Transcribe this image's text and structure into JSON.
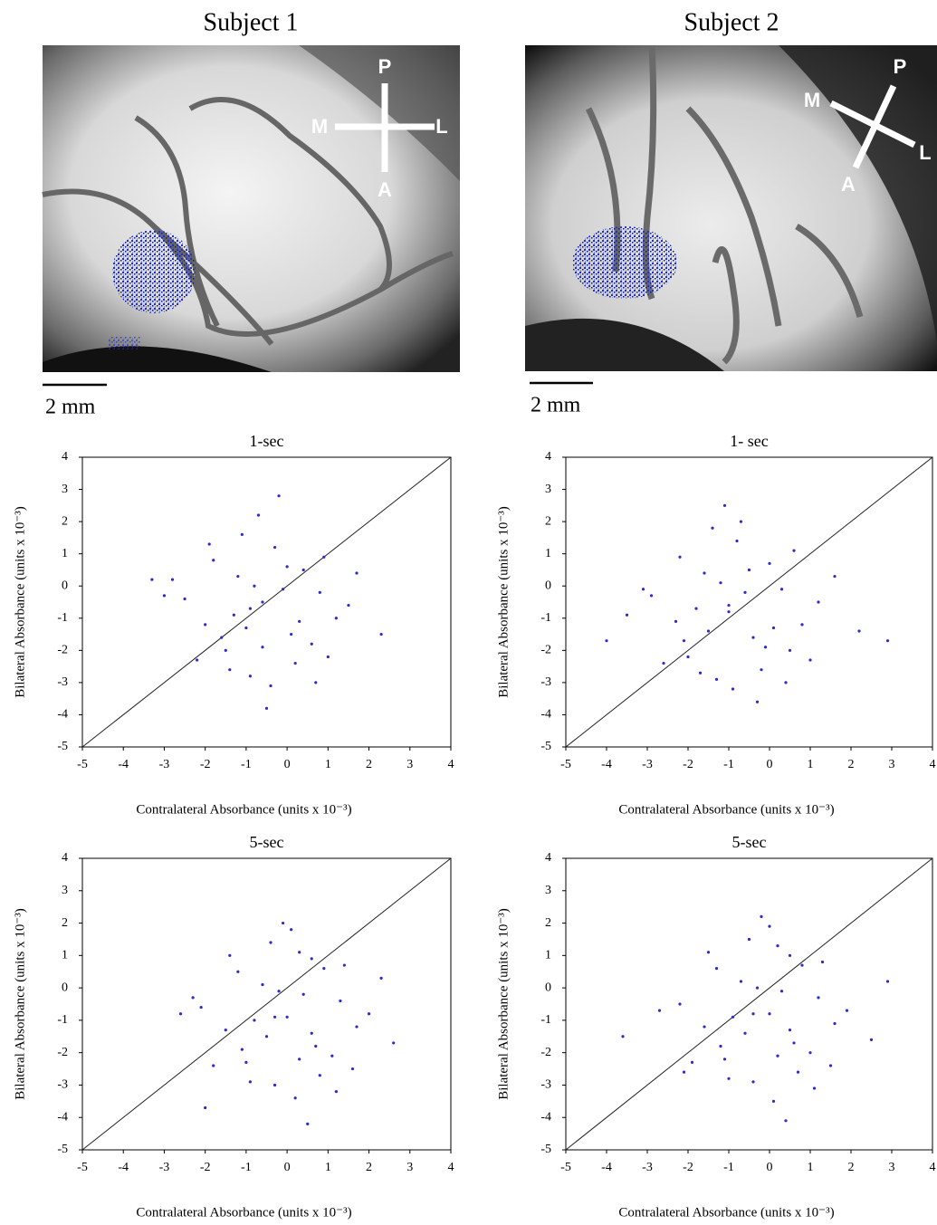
{
  "images": [
    {
      "title": "Subject 1",
      "orientation_labels": [
        "P",
        "M",
        "L",
        "A"
      ],
      "scale_bar": "2 mm"
    },
    {
      "title": "Subject 2",
      "orientation_labels": [
        "P",
        "M",
        "L",
        "A"
      ],
      "scale_bar": "2 mm"
    }
  ],
  "chart_data": [
    {
      "type": "scatter",
      "title": "1-sec",
      "x_label": "Contralateral Absorbance (units x 10⁻³)",
      "y_label": "Bilateral Absorbance (units x 10⁻³)",
      "color": "#2b2bd0",
      "xlim": [
        -5,
        4
      ],
      "ylim": [
        -5,
        4
      ],
      "xticks": [
        -5,
        -4,
        -3,
        -2,
        -1,
        0,
        1,
        2,
        3,
        4
      ],
      "yticks": [
        -5,
        -4,
        -3,
        -2,
        -1,
        0,
        1,
        2,
        3,
        4
      ],
      "x": [
        -0.6,
        -1.2,
        0.1,
        -2.0,
        0.8,
        -0.3,
        -1.5,
        0.4,
        -0.9,
        -2.5,
        1.2,
        -0.1,
        -1.8,
        0.6,
        -0.7,
        -1.0,
        0.2,
        -2.2,
        1.5,
        -0.4,
        -1.3,
        0.9,
        -0.8,
        -3.0,
        0.3,
        -1.6,
        -0.2,
        1.0,
        -1.1,
        -0.5,
        2.3,
        -2.8,
        0.0,
        -1.4,
        0.7,
        -0.9,
        -3.3,
        1.7,
        -0.6,
        -1.9
      ],
      "values": [
        -0.5,
        0.3,
        -1.5,
        -1.2,
        -0.2,
        1.2,
        -2.0,
        0.5,
        -2.8,
        -0.4,
        -1.0,
        -0.1,
        0.8,
        -1.8,
        2.2,
        -1.3,
        -2.4,
        -2.3,
        -0.6,
        -3.1,
        -0.9,
        0.9,
        0.0,
        -0.3,
        -1.1,
        -1.6,
        2.8,
        -2.2,
        1.6,
        -3.8,
        -1.5,
        0.2,
        0.6,
        -2.6,
        -3.0,
        -0.7,
        0.2,
        0.4,
        -1.9,
        1.3
      ]
    },
    {
      "type": "scatter",
      "title": "1- sec",
      "x_label": "Contralateral Absorbance (units x 10⁻³)",
      "y_label": "Bilateral Absorbance (units x 10⁻³)",
      "color": "#2b2bd0",
      "xlim": [
        -5,
        4
      ],
      "ylim": [
        -5,
        4
      ],
      "xticks": [
        -5,
        -4,
        -3,
        -2,
        -1,
        0,
        1,
        2,
        3,
        4
      ],
      "yticks": [
        -5,
        -4,
        -3,
        -2,
        -1,
        0,
        1,
        2,
        3,
        4
      ],
      "x": [
        -1.0,
        -1.6,
        -0.4,
        -2.3,
        0.3,
        -0.8,
        -2.0,
        0.0,
        -1.3,
        -2.9,
        0.8,
        -0.6,
        -2.2,
        0.5,
        -1.1,
        -1.5,
        -0.2,
        -2.6,
        1.2,
        -0.9,
        -1.8,
        0.6,
        -1.2,
        -3.5,
        0.1,
        -2.1,
        -0.7,
        1.0,
        -1.4,
        -0.3,
        2.2,
        -3.1,
        -0.5,
        -1.7,
        0.4,
        -1.0,
        -4.0,
        1.6,
        -0.1,
        2.9
      ],
      "values": [
        -0.8,
        0.4,
        -1.6,
        -1.1,
        -0.1,
        1.4,
        -2.2,
        0.7,
        -2.9,
        -0.3,
        -1.2,
        -0.2,
        0.9,
        -2.0,
        2.5,
        -1.4,
        -2.6,
        -2.4,
        -0.5,
        -3.2,
        -0.7,
        1.1,
        0.1,
        -0.9,
        -1.3,
        -1.7,
        2.0,
        -2.3,
        1.8,
        -3.6,
        -1.4,
        -0.1,
        0.5,
        -2.7,
        -3.0,
        -0.6,
        -1.7,
        0.3,
        -1.9,
        -1.7
      ]
    },
    {
      "type": "scatter",
      "title": "5-sec",
      "x_label": "Contralateral Absorbance (units x 10⁻³)",
      "y_label": "Bilateral Absorbance (units x 10⁻³)",
      "color": "#2b2bd0",
      "xlim": [
        -5,
        4
      ],
      "ylim": [
        -5,
        4
      ],
      "xticks": [
        -5,
        -4,
        -3,
        -2,
        -1,
        0,
        1,
        2,
        3,
        4
      ],
      "yticks": [
        -5,
        -4,
        -3,
        -2,
        -1,
        0,
        1,
        2,
        3,
        4
      ],
      "x": [
        0.0,
        -0.6,
        0.7,
        -1.5,
        1.3,
        0.3,
        -1.0,
        0.9,
        -0.3,
        -2.1,
        1.7,
        0.4,
        -1.2,
        1.1,
        -0.1,
        -0.5,
        0.8,
        -1.8,
        2.0,
        0.2,
        -0.8,
        1.4,
        -0.2,
        -2.6,
        0.6,
        -1.1,
        0.1,
        1.6,
        -0.4,
        0.5,
        2.6,
        -2.3,
        0.6,
        -0.9,
        1.2,
        -0.3,
        -2.0,
        2.3,
        0.3,
        -1.4
      ],
      "values": [
        -0.9,
        0.1,
        -1.8,
        -1.3,
        -0.4,
        1.1,
        -2.3,
        0.6,
        -3.0,
        -0.6,
        -1.2,
        -0.2,
        0.5,
        -2.1,
        2.0,
        -1.5,
        -2.7,
        -2.4,
        -0.8,
        -3.4,
        -1.0,
        0.7,
        -0.1,
        -0.8,
        -1.4,
        -1.9,
        1.8,
        -2.5,
        1.4,
        -4.2,
        -1.7,
        -0.3,
        0.9,
        -2.9,
        -3.2,
        -0.9,
        -3.7,
        0.3,
        -2.2,
        1.0
      ]
    },
    {
      "type": "scatter",
      "title": "5-sec",
      "x_label": "Contralateral Absorbance (units x 10⁻³)",
      "y_label": "Bilateral Absorbance (units x 10⁻³)",
      "color": "#2b2bd0",
      "xlim": [
        -5,
        4
      ],
      "ylim": [
        -5,
        4
      ],
      "xticks": [
        -5,
        -4,
        -3,
        -2,
        -1,
        0,
        1,
        2,
        3,
        4
      ],
      "yticks": [
        -5,
        -4,
        -3,
        -2,
        -1,
        0,
        1,
        2,
        3,
        4
      ],
      "x": [
        0.0,
        -0.7,
        0.6,
        -1.6,
        1.2,
        0.2,
        -1.1,
        0.8,
        -0.4,
        -2.2,
        1.6,
        0.3,
        -1.3,
        1.0,
        -0.2,
        -0.6,
        0.7,
        -1.9,
        1.9,
        0.1,
        -0.9,
        1.3,
        -0.3,
        -2.7,
        0.5,
        -1.2,
        0.0,
        1.5,
        -0.5,
        0.4,
        2.5,
        -3.6,
        0.5,
        -1.0,
        1.1,
        -0.4,
        -2.1,
        2.9,
        0.2,
        -1.5
      ],
      "values": [
        -0.8,
        0.2,
        -1.7,
        -1.2,
        -0.3,
        1.3,
        -2.2,
        0.7,
        -2.9,
        -0.5,
        -1.1,
        -0.1,
        0.6,
        -2.0,
        2.2,
        -1.4,
        -2.6,
        -2.3,
        -0.7,
        -3.5,
        -0.9,
        0.8,
        0.0,
        -0.7,
        -1.3,
        -1.8,
        1.9,
        -2.4,
        1.5,
        -4.1,
        -1.6,
        -1.5,
        1.0,
        -2.8,
        -3.1,
        -0.8,
        -2.6,
        0.2,
        -2.1,
        1.1
      ]
    }
  ]
}
